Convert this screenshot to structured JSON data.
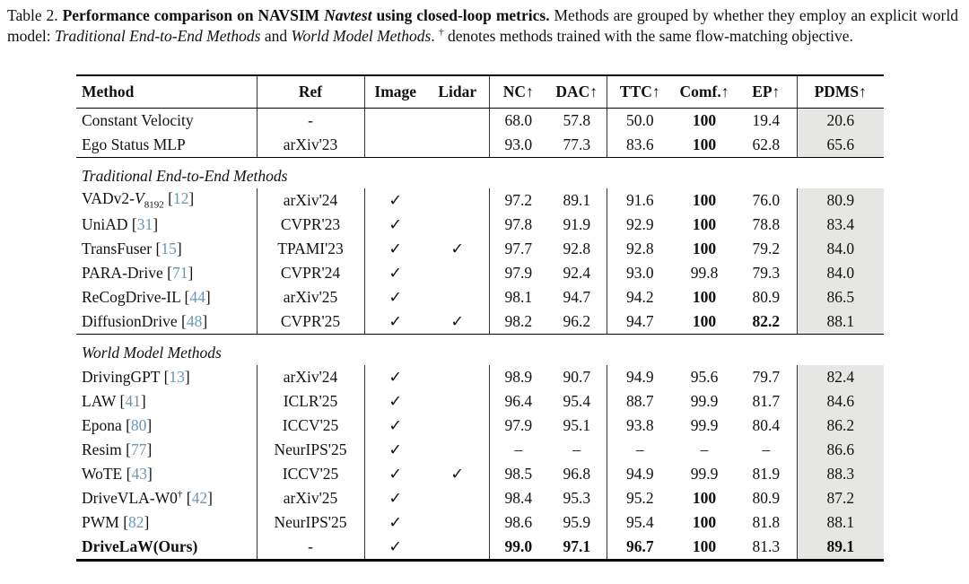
{
  "colors": {
    "cite": "#6997B5",
    "pdms_bg": "#E6E6E4"
  },
  "icons": {
    "check": "✓",
    "dagger": "†",
    "up_arrow": "↑"
  },
  "caption": {
    "prefix": "Table 2. ",
    "bold_1": "Performance comparison on NAVSIM ",
    "bold_italic": "Navtest",
    "bold_2": " using closed-loop metrics.",
    "text_1": " Methods are grouped by whether they employ an explicit world model: ",
    "italic_1": "Traditional End-to-End Methods",
    "text_2": " and ",
    "italic_2": "World Model Methods",
    "text_3": ". ",
    "dagger": "†",
    "text_4": " denotes methods trained with the same flow-matching objective."
  },
  "table": {
    "columns": [
      "Method",
      "Ref",
      "Image",
      "Lidar",
      "NC↑",
      "DAC↑",
      "TTC↑",
      "Comf.↑",
      "EP↑",
      "PDMS↑"
    ],
    "value_keys": [
      "nc",
      "dac",
      "ttc",
      "comf",
      "ep",
      "pdms"
    ],
    "groups": [
      {
        "label": "",
        "rows": [
          {
            "method": "Constant Velocity",
            "script": "",
            "sub": "",
            "dagger": false,
            "cite": "",
            "bold": false,
            "ref": "-",
            "image": false,
            "lidar": false,
            "vals": [
              "68.0",
              "57.8",
              "50.0",
              "100",
              "19.4",
              "20.6"
            ],
            "bold_vals": [
              false,
              false,
              false,
              true,
              false,
              false
            ]
          },
          {
            "method": "Ego Status MLP",
            "script": "",
            "sub": "",
            "dagger": false,
            "cite": "",
            "bold": false,
            "ref": "arXiv'23",
            "image": false,
            "lidar": false,
            "vals": [
              "93.0",
              "77.3",
              "83.6",
              "100",
              "62.8",
              "65.6"
            ],
            "bold_vals": [
              false,
              false,
              false,
              true,
              false,
              false
            ]
          }
        ]
      },
      {
        "label": "Traditional End-to-End Methods",
        "rows": [
          {
            "method": "VADv2-",
            "script": "V",
            "sub": "8192",
            "dagger": false,
            "cite": "12",
            "bold": false,
            "ref": "arXiv'24",
            "image": true,
            "lidar": false,
            "vals": [
              "97.2",
              "89.1",
              "91.6",
              "100",
              "76.0",
              "80.9"
            ],
            "bold_vals": [
              false,
              false,
              false,
              true,
              false,
              false
            ]
          },
          {
            "method": "UniAD",
            "script": "",
            "sub": "",
            "dagger": false,
            "cite": "31",
            "bold": false,
            "ref": "CVPR'23",
            "image": true,
            "lidar": false,
            "vals": [
              "97.8",
              "91.9",
              "92.9",
              "100",
              "78.8",
              "83.4"
            ],
            "bold_vals": [
              false,
              false,
              false,
              true,
              false,
              false
            ]
          },
          {
            "method": "TransFuser",
            "script": "",
            "sub": "",
            "dagger": false,
            "cite": "15",
            "bold": false,
            "ref": "TPAMI'23",
            "image": true,
            "lidar": true,
            "vals": [
              "97.7",
              "92.8",
              "92.8",
              "100",
              "79.2",
              "84.0"
            ],
            "bold_vals": [
              false,
              false,
              false,
              true,
              false,
              false
            ]
          },
          {
            "method": "PARA-Drive",
            "script": "",
            "sub": "",
            "dagger": false,
            "cite": "71",
            "bold": false,
            "ref": "CVPR'24",
            "image": true,
            "lidar": false,
            "vals": [
              "97.9",
              "92.4",
              "93.0",
              "99.8",
              "79.3",
              "84.0"
            ],
            "bold_vals": [
              false,
              false,
              false,
              false,
              false,
              false
            ]
          },
          {
            "method": "ReCogDrive-IL",
            "script": "",
            "sub": "",
            "dagger": false,
            "cite": "44",
            "bold": false,
            "ref": "arXiv'25",
            "image": true,
            "lidar": false,
            "vals": [
              "98.1",
              "94.7",
              "94.2",
              "100",
              "80.9",
              "86.5"
            ],
            "bold_vals": [
              false,
              false,
              false,
              true,
              false,
              false
            ]
          },
          {
            "method": "DiffusionDrive",
            "script": "",
            "sub": "",
            "dagger": false,
            "cite": "48",
            "bold": false,
            "ref": "CVPR'25",
            "image": true,
            "lidar": true,
            "vals": [
              "98.2",
              "96.2",
              "94.7",
              "100",
              "82.2",
              "88.1"
            ],
            "bold_vals": [
              false,
              false,
              false,
              true,
              true,
              false
            ]
          }
        ]
      },
      {
        "label": "World Model Methods",
        "rows": [
          {
            "method": "DrivingGPT",
            "script": "",
            "sub": "",
            "dagger": false,
            "cite": "13",
            "bold": false,
            "ref": "arXiv'24",
            "image": true,
            "lidar": false,
            "vals": [
              "98.9",
              "90.7",
              "94.9",
              "95.6",
              "79.7",
              "82.4"
            ],
            "bold_vals": [
              false,
              false,
              false,
              false,
              false,
              false
            ]
          },
          {
            "method": "LAW",
            "script": "",
            "sub": "",
            "dagger": false,
            "cite": "41",
            "bold": false,
            "ref": "ICLR'25",
            "image": true,
            "lidar": false,
            "vals": [
              "96.4",
              "95.4",
              "88.7",
              "99.9",
              "81.7",
              "84.6"
            ],
            "bold_vals": [
              false,
              false,
              false,
              false,
              false,
              false
            ]
          },
          {
            "method": "Epona",
            "script": "",
            "sub": "",
            "dagger": false,
            "cite": "80",
            "bold": false,
            "ref": "ICCV'25",
            "image": true,
            "lidar": false,
            "vals": [
              "97.9",
              "95.1",
              "93.8",
              "99.9",
              "80.4",
              "86.2"
            ],
            "bold_vals": [
              false,
              false,
              false,
              false,
              false,
              false
            ]
          },
          {
            "method": "Resim",
            "script": "",
            "sub": "",
            "dagger": false,
            "cite": "77",
            "bold": false,
            "ref": "NeurIPS'25",
            "image": true,
            "lidar": false,
            "vals": [
              "–",
              "–",
              "–",
              "–",
              "–",
              "86.6"
            ],
            "bold_vals": [
              false,
              false,
              false,
              false,
              false,
              false
            ]
          },
          {
            "method": "WoTE",
            "script": "",
            "sub": "",
            "dagger": false,
            "cite": "43",
            "bold": false,
            "ref": "ICCV'25",
            "image": true,
            "lidar": true,
            "vals": [
              "98.5",
              "96.8",
              "94.9",
              "99.9",
              "81.9",
              "88.3"
            ],
            "bold_vals": [
              false,
              false,
              false,
              false,
              false,
              false
            ]
          },
          {
            "method": "DriveVLA-W0",
            "script": "",
            "sub": "",
            "dagger": true,
            "cite": "42",
            "bold": false,
            "ref": "arXiv'25",
            "image": true,
            "lidar": false,
            "vals": [
              "98.4",
              "95.3",
              "95.2",
              "100",
              "80.9",
              "87.2"
            ],
            "bold_vals": [
              false,
              false,
              false,
              true,
              false,
              false
            ]
          },
          {
            "method": "PWM",
            "script": "",
            "sub": "",
            "dagger": false,
            "cite": "82",
            "bold": false,
            "ref": "NeurIPS'25",
            "image": true,
            "lidar": false,
            "vals": [
              "98.6",
              "95.9",
              "95.4",
              "100",
              "81.8",
              "88.1"
            ],
            "bold_vals": [
              false,
              false,
              false,
              true,
              false,
              false
            ]
          },
          {
            "method": "DriveLaW(Ours)",
            "script": "",
            "sub": "",
            "dagger": false,
            "cite": "",
            "bold": true,
            "ref": "-",
            "image": true,
            "lidar": false,
            "vals": [
              "99.0",
              "97.1",
              "96.7",
              "100",
              "81.3",
              "89.1"
            ],
            "bold_vals": [
              true,
              true,
              true,
              true,
              false,
              true
            ]
          }
        ]
      }
    ]
  }
}
